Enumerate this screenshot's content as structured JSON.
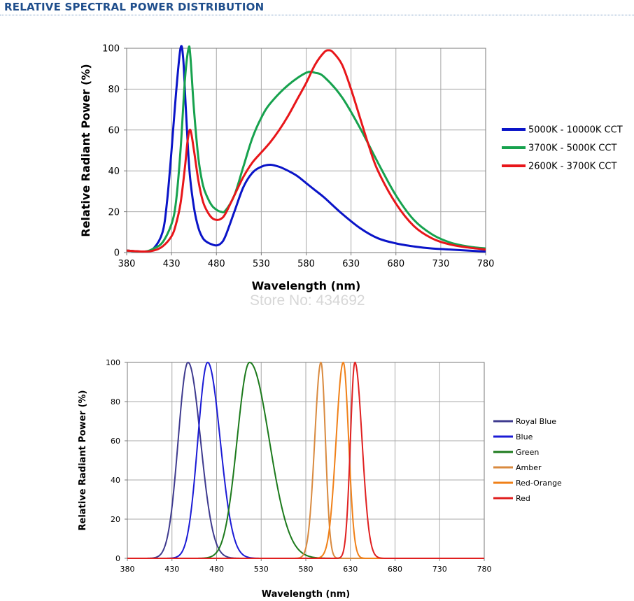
{
  "header": {
    "title": "RELATIVE SPECTRAL POWER DISTRIBUTION"
  },
  "watermark": "Store No: 434692",
  "chart_data": [
    {
      "type": "line",
      "title": "",
      "xlabel": "Wavelength (nm)",
      "ylabel": "Relative Radiant Power (%)",
      "xlim": [
        380,
        780
      ],
      "ylim": [
        0,
        100
      ],
      "xticks": [
        380,
        430,
        480,
        530,
        580,
        630,
        680,
        730,
        780
      ],
      "yticks": [
        0,
        20,
        40,
        60,
        80,
        100
      ],
      "grid": true,
      "legend_position": "right",
      "series": [
        {
          "name": "5000K - 10000K CCT",
          "color": "#0a14c8",
          "x": [
            380,
            400,
            410,
            420,
            425,
            430,
            435,
            440,
            443,
            446,
            450,
            455,
            460,
            465,
            470,
            475,
            480,
            485,
            490,
            500,
            510,
            520,
            530,
            540,
            550,
            560,
            570,
            580,
            590,
            600,
            620,
            640,
            660,
            680,
            700,
            720,
            740,
            760,
            780
          ],
          "y": [
            1,
            0.5,
            2,
            10,
            25,
            50,
            78,
            100,
            95,
            70,
            40,
            22,
            12,
            7,
            5,
            4,
            3.5,
            4.5,
            8,
            20,
            32,
            39,
            42,
            43,
            42,
            40,
            37.5,
            34,
            30.5,
            27,
            19,
            12,
            7,
            4.5,
            3,
            2,
            1.5,
            1,
            0.5
          ]
        },
        {
          "name": "3700K - 5000K CCT",
          "color": "#17a24e",
          "x": [
            380,
            400,
            410,
            420,
            430,
            435,
            440,
            445,
            449,
            451,
            455,
            460,
            465,
            470,
            475,
            480,
            485,
            490,
            500,
            510,
            520,
            530,
            540,
            560,
            580,
            590,
            600,
            620,
            640,
            660,
            680,
            700,
            720,
            740,
            760,
            780
          ],
          "y": [
            1,
            0.5,
            2,
            5,
            14,
            25,
            50,
            85,
            100,
            96,
            70,
            46,
            33,
            27,
            23,
            21,
            20,
            20.5,
            28,
            42,
            56,
            66,
            73,
            82,
            88,
            88,
            86,
            76,
            61,
            44,
            28,
            16,
            9,
            5,
            3,
            2
          ]
        },
        {
          "name": "2600K - 3700K CCT",
          "color": "#e8161a",
          "x": [
            380,
            400,
            410,
            420,
            430,
            435,
            440,
            445,
            448,
            451,
            455,
            460,
            465,
            470,
            475,
            480,
            485,
            490,
            500,
            510,
            520,
            530,
            540,
            550,
            560,
            570,
            580,
            590,
            600,
            605,
            610,
            620,
            630,
            640,
            650,
            660,
            680,
            700,
            720,
            740,
            760,
            780
          ],
          "y": [
            1,
            0.5,
            1,
            3,
            8,
            14,
            24,
            42,
            55,
            60,
            50,
            35,
            25,
            20,
            17,
            16,
            16.5,
            19,
            28,
            37,
            44,
            49,
            54,
            60,
            67,
            75,
            83,
            92,
            98,
            99,
            98,
            92,
            80,
            66,
            52,
            40,
            24,
            13,
            7,
            4,
            2.5,
            1.5
          ]
        }
      ]
    },
    {
      "type": "line",
      "title": "",
      "xlabel": "Wavelength (nm)",
      "ylabel": "Relative Radiant Power (%)",
      "xlim": [
        380,
        780
      ],
      "ylim": [
        0,
        100
      ],
      "xticks": [
        380,
        430,
        480,
        530,
        580,
        630,
        680,
        730,
        780
      ],
      "yticks": [
        0,
        20,
        40,
        60,
        80,
        100
      ],
      "grid": true,
      "legend_position": "right",
      "series": [
        {
          "name": "Royal Blue",
          "color": "#3f3b8f",
          "peak": 448,
          "width_left": 11,
          "width_right": 14
        },
        {
          "name": "Blue",
          "color": "#1b1bd6",
          "peak": 470,
          "width_left": 11,
          "width_right": 14
        },
        {
          "name": "Green",
          "color": "#1c7a1c",
          "peak": 517,
          "width_left": 14,
          "width_right": 22
        },
        {
          "name": "Amber",
          "color": "#d98a3f",
          "peak": 597,
          "width_left": 7,
          "width_right": 5
        },
        {
          "name": "Red-Orange",
          "color": "#f08018",
          "peak": 622,
          "width_left": 8,
          "width_right": 6
        },
        {
          "name": "Red",
          "color": "#e02020",
          "peak": 635,
          "width_left": 5,
          "width_right": 8
        }
      ]
    }
  ]
}
